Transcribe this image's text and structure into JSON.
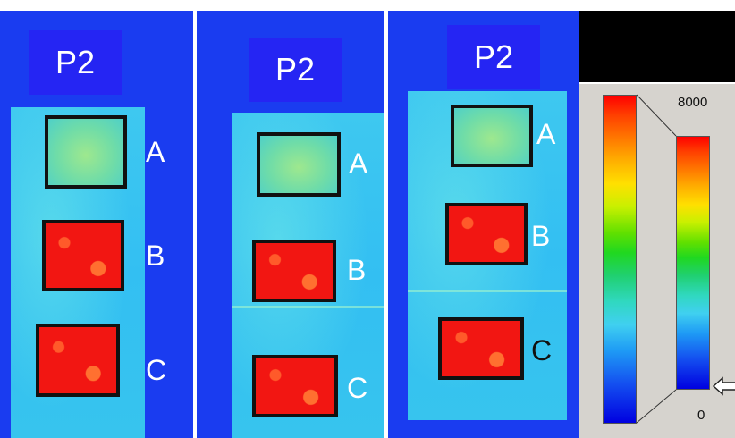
{
  "panels": [
    {
      "title": "P2",
      "regions": [
        "A",
        "B",
        "C"
      ]
    },
    {
      "title": "P2",
      "regions": [
        "A",
        "B",
        "C"
      ]
    },
    {
      "title": "P2",
      "regions": [
        "A",
        "B",
        "C"
      ]
    }
  ],
  "color_scale": {
    "max_label": "8000",
    "min_label": "0"
  },
  "colors": {
    "background_blue": "#1a3cf0",
    "sheet_cyan": "#37c4ee",
    "hot_red": "#f21612",
    "box_border": "#111111"
  }
}
